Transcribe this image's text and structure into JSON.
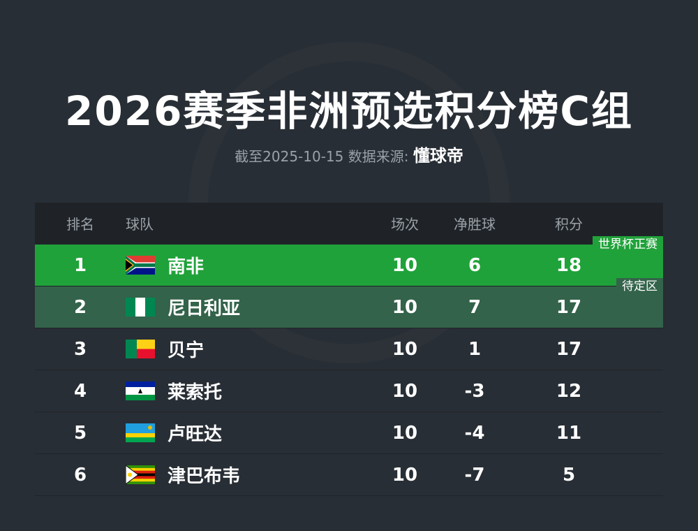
{
  "title": "2026赛季非洲预选积分榜C组",
  "subtitle": {
    "prefix": "截至2025-10-15 数据来源:",
    "source": "懂球帝"
  },
  "colors": {
    "qualified": "#20a23a",
    "pending": "#33634a",
    "header": "#1f2328",
    "background": "#282e35"
  },
  "headers": {
    "rank": "排名",
    "team": "球队",
    "played": "场次",
    "gd": "净胜球",
    "points": "积分"
  },
  "zones": {
    "qualified": "世界杯正赛",
    "pending": "待定区"
  },
  "rows": [
    {
      "rank": "1",
      "team": "南非",
      "flag": "south-africa-flag",
      "played": "10",
      "gd": "6",
      "points": "18"
    },
    {
      "rank": "2",
      "team": "尼日利亚",
      "flag": "nigeria-flag",
      "played": "10",
      "gd": "7",
      "points": "17"
    },
    {
      "rank": "3",
      "team": "贝宁",
      "flag": "benin-flag",
      "played": "10",
      "gd": "1",
      "points": "17"
    },
    {
      "rank": "4",
      "team": "莱索托",
      "flag": "lesotho-flag",
      "played": "10",
      "gd": "-3",
      "points": "12"
    },
    {
      "rank": "5",
      "team": "卢旺达",
      "flag": "rwanda-flag",
      "played": "10",
      "gd": "-4",
      "points": "11"
    },
    {
      "rank": "6",
      "team": "津巴布韦",
      "flag": "zimbabwe-flag",
      "played": "10",
      "gd": "-7",
      "points": "5"
    }
  ]
}
